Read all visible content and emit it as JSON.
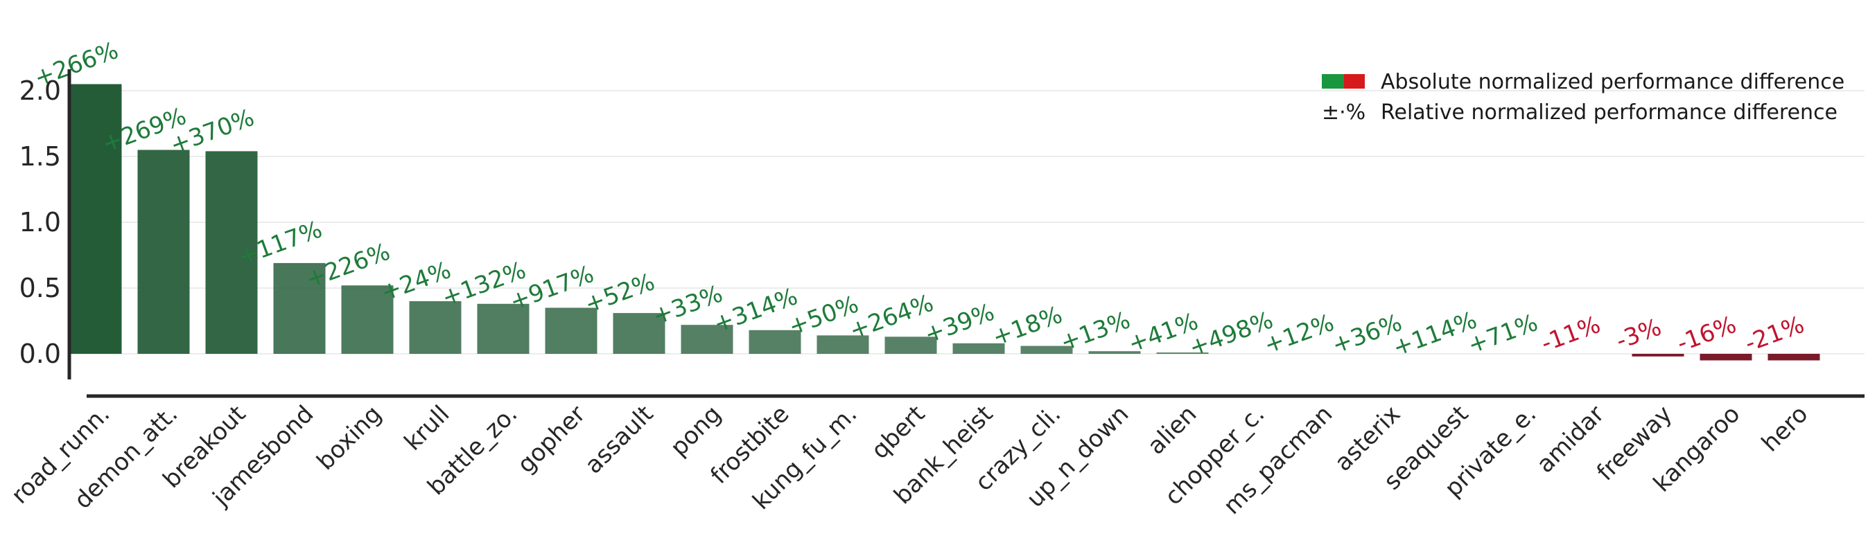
{
  "chart_data": {
    "type": "bar",
    "title": "",
    "xlabel": "",
    "ylabel": "",
    "ylim": [
      -0.3,
      2.2
    ],
    "yticks": [
      "0.0",
      "0.5",
      "1.0",
      "1.5",
      "2.0"
    ],
    "grid": "horizontal",
    "legend_position": "top-right",
    "categories": [
      "road_runn.",
      "demon_att.",
      "breakout",
      "jamesbond",
      "boxing",
      "krull",
      "battle_zo.",
      "gopher",
      "assault",
      "pong",
      "frostbite",
      "kung_fu_m.",
      "qbert",
      "bank_heist",
      "crazy_cli.",
      "up_n_down",
      "alien",
      "chopper_c.",
      "ms_pacman",
      "asterix",
      "seaquest",
      "private_e.",
      "amidar",
      "freeway",
      "kangaroo",
      "hero"
    ],
    "values": [
      2.05,
      1.55,
      1.54,
      0.69,
      0.52,
      0.4,
      0.38,
      0.35,
      0.31,
      0.22,
      0.18,
      0.14,
      0.13,
      0.08,
      0.06,
      0.02,
      0.01,
      0.0,
      0.0,
      0.0,
      0.0,
      0.0,
      0.0,
      -0.02,
      -0.05,
      -0.05
    ],
    "relative_labels": [
      "+266%",
      "+269%",
      "+370%",
      "+117%",
      "+226%",
      "+24%",
      "+132%",
      "+917%",
      "+52%",
      "+33%",
      "+314%",
      "+50%",
      "+264%",
      "+39%",
      "+18%",
      "+13%",
      "+41%",
      "+498%",
      "+12%",
      "+36%",
      "+114%",
      "+71%",
      "-11%",
      "-3%",
      "-16%",
      "-21%"
    ],
    "legend": {
      "absolute": "Absolute normalized performance difference",
      "relative_symbol": "±·%",
      "relative": "Relative normalized performance difference"
    },
    "colors": {
      "positive_bar": "#245c38",
      "negative_bar": "#7a1a2a",
      "positive_label": "#1e7b3a",
      "negative_label": "#c0142f",
      "legend_green": "#1a9641",
      "legend_red": "#d7191c"
    }
  }
}
